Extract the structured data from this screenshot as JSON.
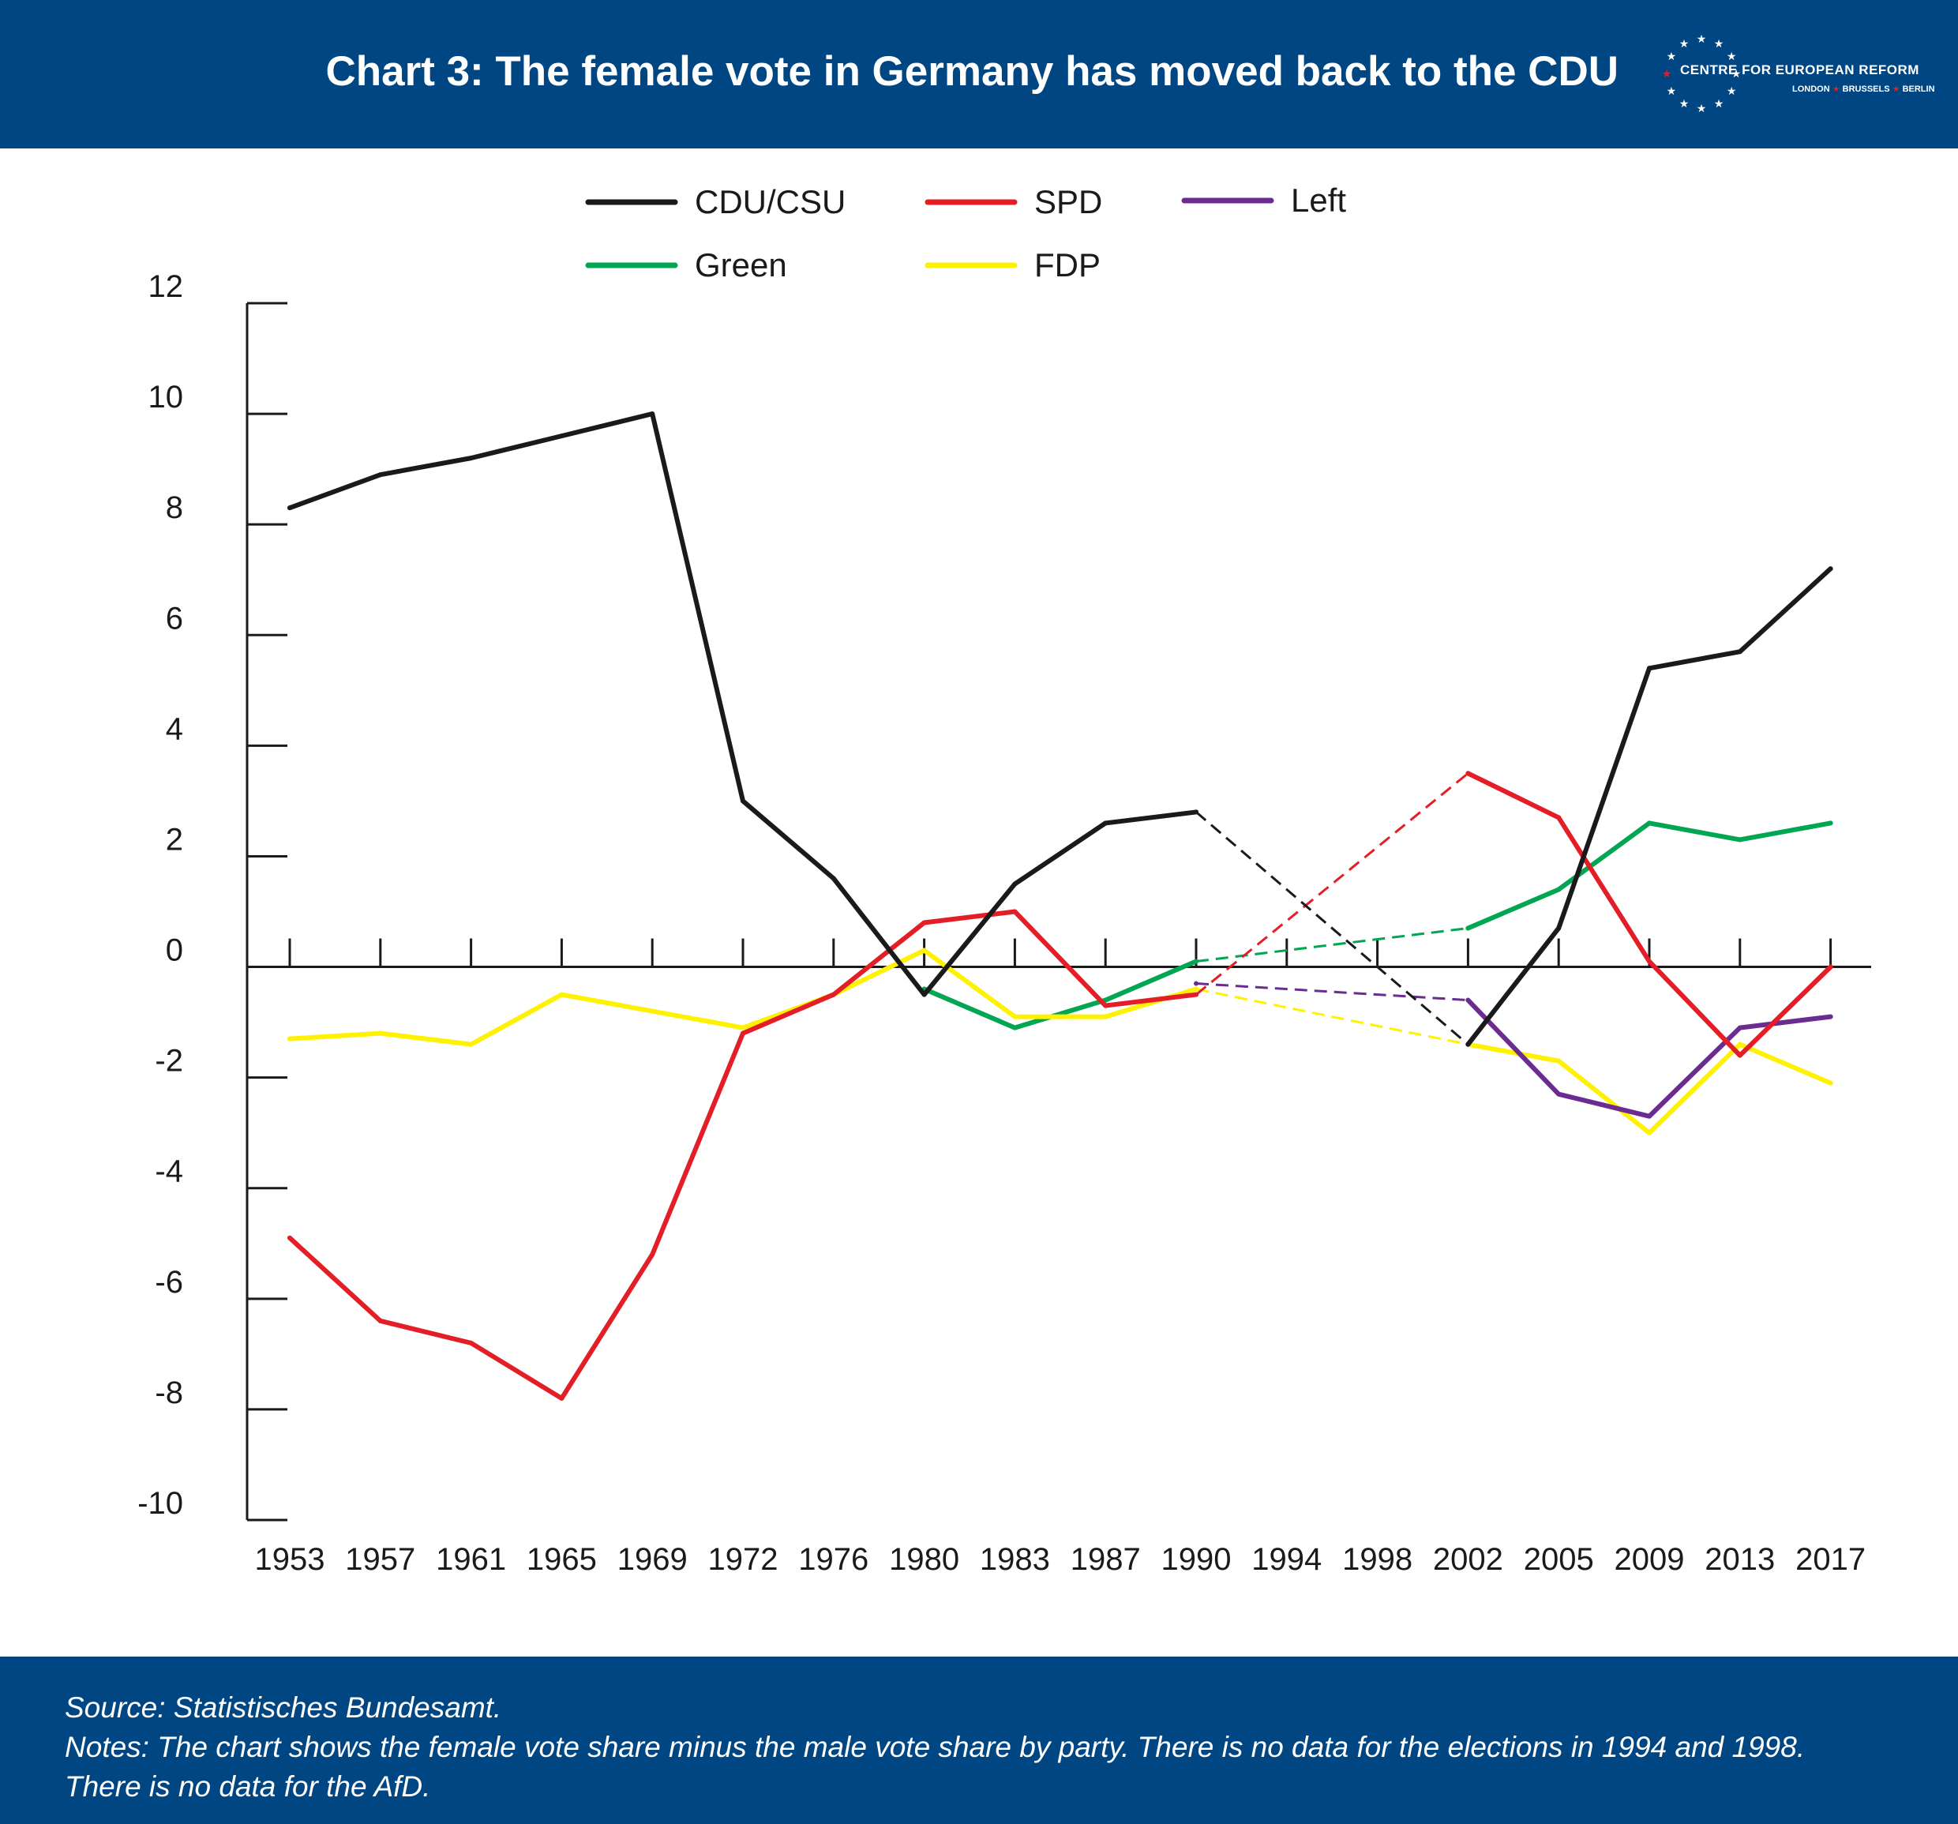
{
  "header": {
    "title": "Chart 3: The female vote in Germany has moved back to the CDU",
    "logo_name": "CENTRE FOR EUROPEAN REFORM",
    "logo_cities": [
      "LONDON",
      "BRUSSELS",
      "BERLIN"
    ]
  },
  "colors": {
    "header_bg": "#004682",
    "CDU/CSU": "#1a1a1a",
    "SPD": "#e41e26",
    "Left": "#6b2c91",
    "Green": "#00a651",
    "FDP": "#fff200"
  },
  "chart_data": {
    "type": "line",
    "title": "Chart 3: The female vote in Germany has moved back to the CDU",
    "xlabel": "",
    "ylabel": "",
    "categories": [
      "1953",
      "1957",
      "1961",
      "1965",
      "1969",
      "1972",
      "1976",
      "1980",
      "1983",
      "1987",
      "1990",
      "1994",
      "1998",
      "2002",
      "2005",
      "2009",
      "2013",
      "2017"
    ],
    "ylim": [
      -10,
      12
    ],
    "yticks": [
      "12",
      "10",
      "8",
      "6",
      "4",
      "2",
      "0",
      "-2",
      "-4",
      "-6",
      "-8",
      "-10"
    ],
    "grid": false,
    "legend_position": "top",
    "legend_order": [
      "CDU/CSU",
      "SPD",
      "Left",
      "Green",
      "FDP"
    ],
    "gap_years": [
      "1994",
      "1998"
    ],
    "gap_style": "dashed",
    "series": [
      {
        "name": "CDU/CSU",
        "values": [
          8.3,
          8.9,
          9.2,
          9.6,
          10.0,
          3.0,
          1.6,
          -0.5,
          1.5,
          2.6,
          2.8,
          null,
          null,
          -1.4,
          0.7,
          5.4,
          5.7,
          7.2
        ]
      },
      {
        "name": "SPD",
        "values": [
          -4.9,
          -6.4,
          -6.8,
          -7.8,
          -5.2,
          -1.2,
          -0.5,
          0.8,
          1.0,
          -0.7,
          -0.5,
          null,
          null,
          3.5,
          2.7,
          0.1,
          -1.6,
          0.0
        ]
      },
      {
        "name": "Left",
        "values": [
          null,
          null,
          null,
          null,
          null,
          null,
          null,
          null,
          null,
          null,
          -0.3,
          null,
          null,
          -0.6,
          -2.3,
          -2.7,
          -1.1,
          -0.9
        ]
      },
      {
        "name": "Green",
        "values": [
          null,
          null,
          null,
          null,
          null,
          null,
          null,
          -0.4,
          -1.1,
          -0.6,
          0.1,
          null,
          null,
          0.7,
          1.4,
          2.6,
          2.3,
          2.6
        ]
      },
      {
        "name": "FDP",
        "values": [
          -1.3,
          -1.2,
          -1.4,
          -0.5,
          -0.8,
          -1.1,
          -0.5,
          0.3,
          -0.9,
          -0.9,
          -0.4,
          null,
          null,
          -1.4,
          -1.7,
          -3.0,
          -1.4,
          -2.1
        ]
      }
    ]
  },
  "footer": {
    "source": "Source: Statistisches Bundesamt.",
    "notes_line1": "Notes: The chart shows the female vote share minus the male vote share by party. There is no data for the elections in 1994 and 1998.",
    "notes_line2": "There is no data for the AfD."
  }
}
